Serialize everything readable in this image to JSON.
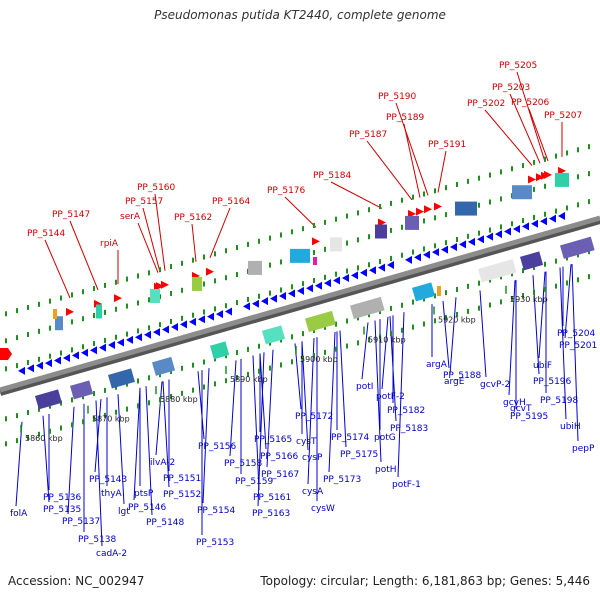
{
  "title": "Pseudomonas putida KT2440, complete genome",
  "accession": "Accession: NC_002947",
  "summary": "Topology: circular; Length: 6,181,863 bp; Genes: 5,446",
  "scale_labels": [
    "5860 kbp",
    "5870 kbp",
    "5880 kbp",
    "5890 kbp",
    "5900 kbp",
    "5910 kbp",
    "5920 kbp",
    "5930 kbp"
  ],
  "colors": {
    "backbone": "#8c8c8c",
    "tick": "#1f8f1f",
    "fwd_label": "#cc0000",
    "fwd_gene": "#ff0000",
    "rev_label": "#0000cc",
    "rev_gene": "#0000ff"
  },
  "forward_labels": [
    "PP_5144",
    "PP_5147",
    "rpiA",
    "PP_5160",
    "PP_5157",
    "serA",
    "PP_5162",
    "PP_5164",
    "PP_5176",
    "PP_5184",
    "PP_5187",
    "PP_5190",
    "PP_5189",
    "PP_5191",
    "PP_5202",
    "PP_5205",
    "PP_5203",
    "PP_5206",
    "PP_5207"
  ],
  "reverse_labels": [
    "folA",
    "PP_5136",
    "PP_5135",
    "PP_5137",
    "PP_5138",
    "cadA-2",
    "PP_5143",
    "thyA",
    "lgt",
    "PP_5146",
    "ptsP",
    "PP_5148",
    "ilvA-2",
    "PP_5151",
    "PP_5152",
    "PP_5154",
    "PP_5153",
    "PP_5156",
    "PP_5158",
    "PP_5159",
    "PP_5161",
    "PP_5163",
    "PP_5165",
    "PP_5166",
    "PP_5167",
    "cysT",
    "cysP",
    "cysA",
    "cysW",
    "PP_5172",
    "PP_5173",
    "PP_5174",
    "PP_5175",
    "potI",
    "potG",
    "potH",
    "potF-2",
    "PP_5182",
    "PP_5183",
    "potF-1",
    "argA",
    "PP_5188",
    "argE",
    "gcvT",
    "gcvP-2",
    "gcvH",
    "PP_5195",
    "PP_5196",
    "ubiF",
    "PP_5198",
    "ubiH",
    "PP_5201",
    "PP_5204",
    "pepP"
  ]
}
